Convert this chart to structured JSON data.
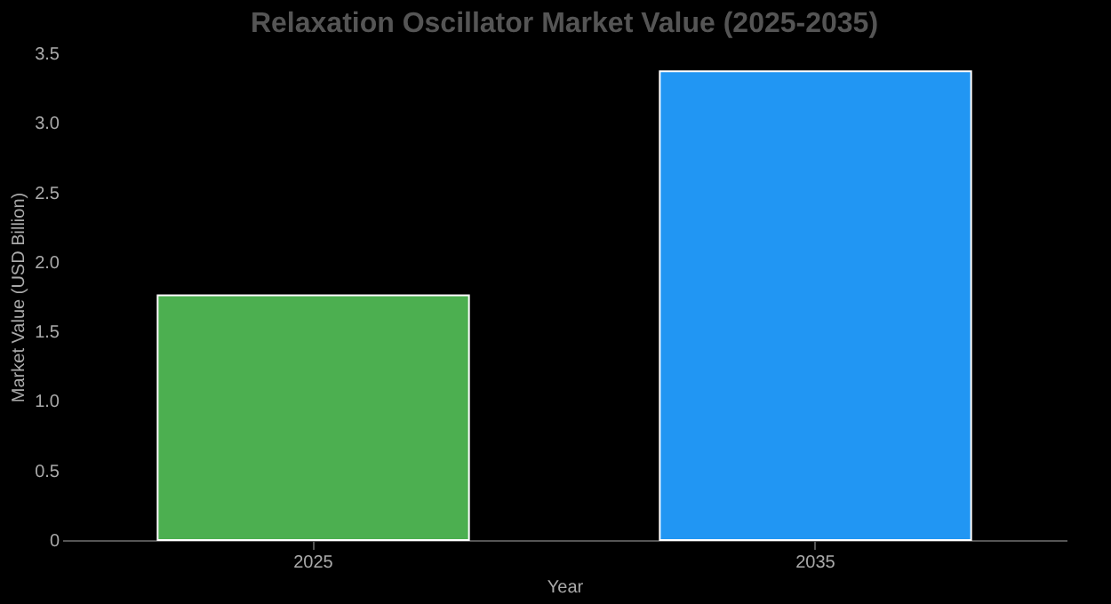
{
  "chart_data": {
    "type": "bar",
    "title": "Relaxation Oscillator Market Value (2025-2035)",
    "xlabel": "Year",
    "ylabel": "Market Value (USD Billion)",
    "categories": [
      "2025",
      "2035"
    ],
    "values": [
      1.76,
      3.37
    ],
    "colors": [
      "#4caf50",
      "#2196f3"
    ],
    "ylim": [
      0,
      3.5
    ],
    "yticks": [
      0,
      0.5,
      {
        "value": 1,
        "label": "1.0"
      },
      1.5,
      {
        "value": 2,
        "label": "2.0"
      },
      2.5,
      {
        "value": 3,
        "label": "3.0"
      },
      3.5
    ],
    "grid": false,
    "legend": false
  }
}
